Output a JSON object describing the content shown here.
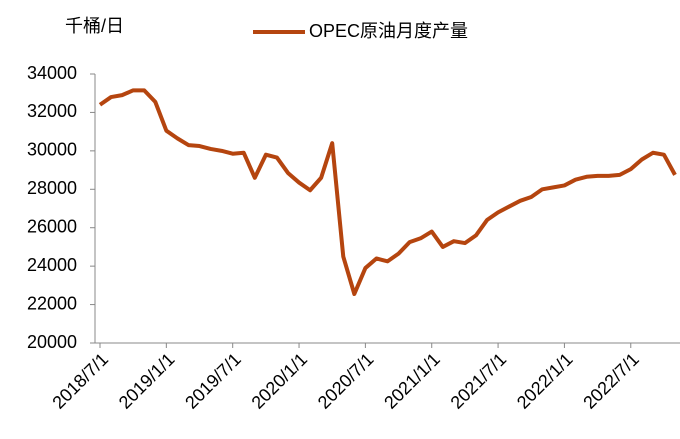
{
  "chart_data": {
    "type": "line",
    "y_unit": "千桶/日",
    "categories": [
      "2018/7/1",
      null,
      null,
      null,
      null,
      null,
      "2019/1/1",
      null,
      null,
      null,
      null,
      null,
      "2019/7/1",
      null,
      null,
      null,
      null,
      null,
      "2020/1/1",
      null,
      null,
      null,
      null,
      null,
      "2020/7/1",
      null,
      null,
      null,
      null,
      null,
      "2021/1/1",
      null,
      null,
      null,
      null,
      null,
      "2021/7/1",
      null,
      null,
      null,
      null,
      null,
      "2022/1/1",
      null,
      null,
      null,
      null,
      null,
      "2022/7/1",
      null,
      null,
      null,
      null
    ],
    "series": [
      {
        "name": "OPEC原油月度产量",
        "color": "#b5450f",
        "values": [
          32400,
          32800,
          32900,
          33150,
          33150,
          32550,
          31050,
          30650,
          30300,
          30250,
          30100,
          30000,
          29850,
          29900,
          28600,
          29800,
          29650,
          28850,
          28350,
          27950,
          28600,
          30400,
          24500,
          22550,
          23900,
          24400,
          24250,
          24650,
          25250,
          25450,
          25800,
          25000,
          25300,
          25200,
          25600,
          26400,
          26800,
          27100,
          27400,
          27600,
          28000,
          28100,
          28200,
          28500,
          28650,
          28700,
          28700,
          28750,
          29050,
          29550,
          29900,
          29800,
          28750
        ]
      }
    ],
    "ylim": [
      20000,
      34000
    ],
    "yticks": [
      20000,
      22000,
      24000,
      26000,
      28000,
      30000,
      32000,
      34000
    ],
    "grid": false,
    "legend": "top"
  }
}
